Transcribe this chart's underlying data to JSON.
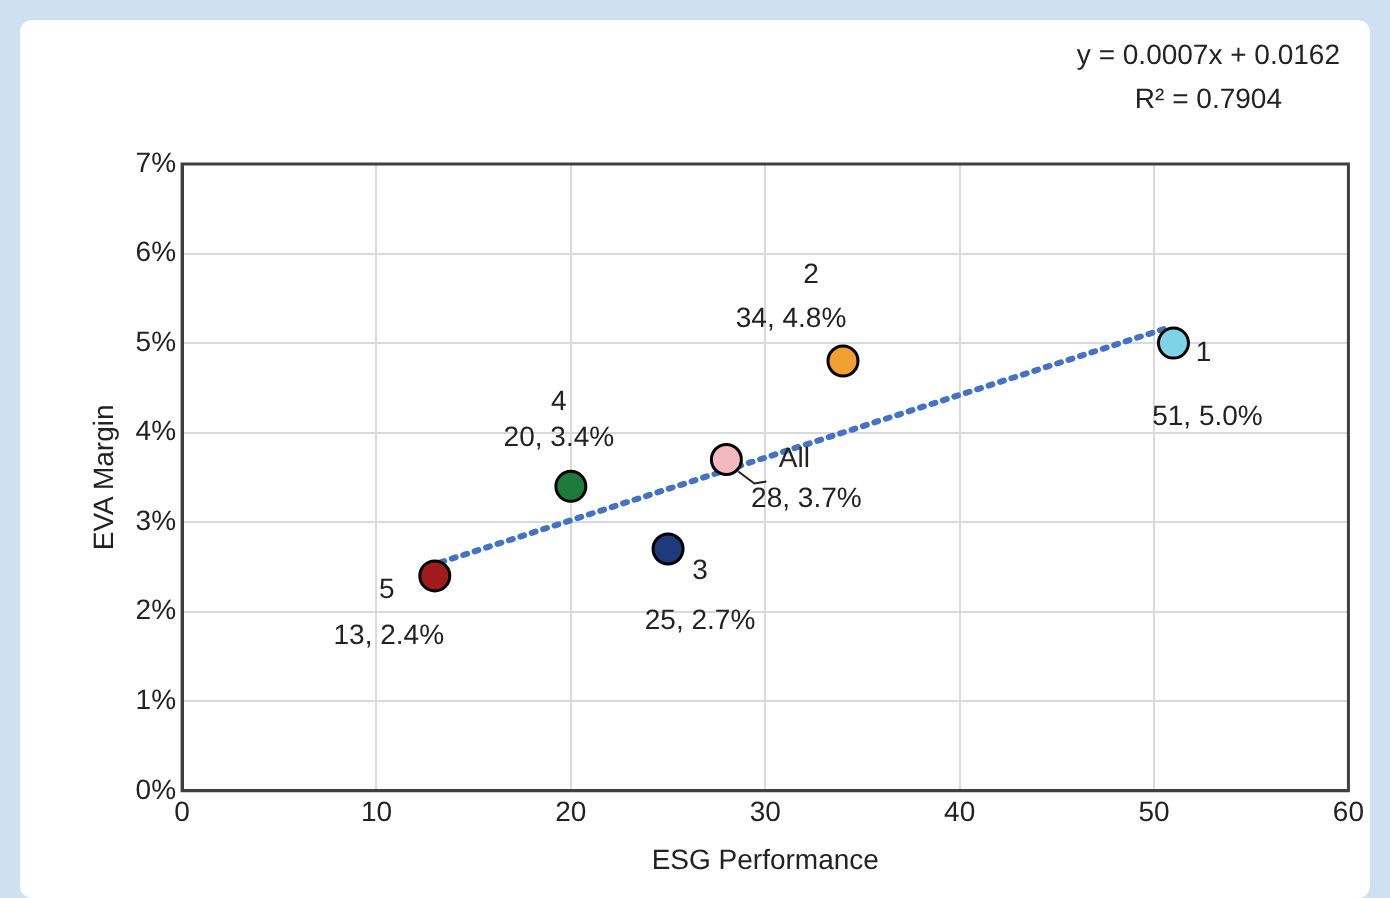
{
  "chart_data": {
    "type": "scatter",
    "xlabel": "ESG Performance",
    "ylabel": "EVA Margin",
    "xlim": [
      0,
      60
    ],
    "xticks": [
      0,
      10,
      20,
      30,
      40,
      50,
      60
    ],
    "ylim": [
      0,
      7
    ],
    "yticks": [
      {
        "value": 0,
        "label": "0%"
      },
      {
        "value": 1,
        "label": "1%"
      },
      {
        "value": 2,
        "label": "2%"
      },
      {
        "value": 3,
        "label": "3%"
      },
      {
        "value": 4,
        "label": "4%"
      },
      {
        "value": 5,
        "label": "5%"
      },
      {
        "value": 6,
        "label": "6%"
      },
      {
        "value": 7,
        "label": "7%"
      }
    ],
    "grid": true,
    "legend": false,
    "series": [
      {
        "type": "scatter",
        "marker": "circle",
        "x": [
          51,
          34,
          25,
          20,
          13,
          28
        ],
        "values": [
          5.0,
          4.8,
          2.7,
          3.4,
          2.4,
          3.7
        ],
        "colors": [
          "#7fd3e8",
          "#f0a030",
          "#1f3a7a",
          "#1e7a3a",
          "#a01c1c",
          "#f5b8c0"
        ],
        "value_labels": [
          "51, 5.0%",
          "34, 4.8%",
          "25, 2.7%",
          "20, 3.4%",
          "13, 2.4%",
          "28, 3.7%"
        ]
      },
      {
        "type": "line",
        "marker": "none",
        "line_style": "dotted",
        "color": "#4472c4",
        "x": [
          12.7,
          50.7
        ],
        "values": [
          2.51,
          5.17
        ]
      }
    ],
    "annotations": [
      {
        "text": "1",
        "x": 51,
        "y": 5.0
      },
      {
        "text": "2",
        "x": 34,
        "y": 4.8
      },
      {
        "text": "3",
        "x": 25,
        "y": 2.7
      },
      {
        "text": "4",
        "x": 20,
        "y": 3.4
      },
      {
        "text": "5",
        "x": 13,
        "y": 2.4
      },
      {
        "text": "All",
        "x": 28,
        "y": 3.7
      },
      "y = 0.0007x + 0.0162",
      "R² = 0.7904"
    ]
  }
}
